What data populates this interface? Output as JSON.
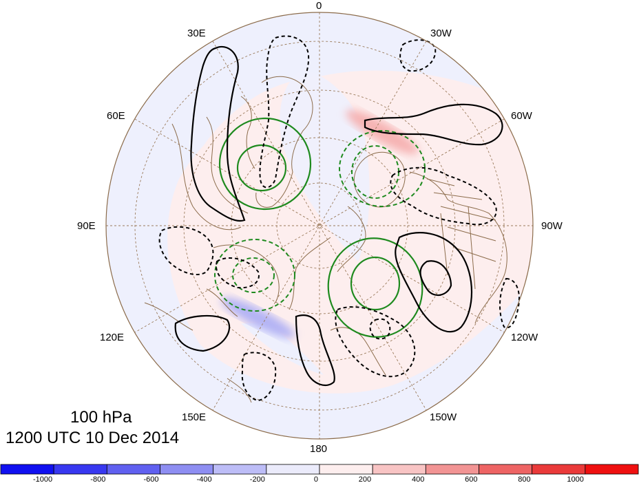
{
  "map": {
    "level": "100 hPa",
    "valid_time": "1200 UTC 10 Dec 2014",
    "projection": "north polar stereographic",
    "longitude_labels": [
      "0",
      "30W",
      "60W",
      "90W",
      "120W",
      "150W",
      "180",
      "150E",
      "120E",
      "90E",
      "60E",
      "30E"
    ]
  },
  "colorbar": {
    "colors": [
      "#1010f0",
      "#3838f0",
      "#6060f0",
      "#8e8ef2",
      "#bdbdf7",
      "#ebebfb",
      "#fdeeee",
      "#f8c4c4",
      "#f29494",
      "#ee6464",
      "#ea3a3a",
      "#ef1010"
    ],
    "tick_labels": [
      "-1000",
      "-800",
      "-600",
      "-400",
      "-200",
      "0",
      "200",
      "400",
      "600",
      "800",
      "1000"
    ]
  },
  "colors": {
    "positive_contour": "#000000",
    "negative_contour": "#000000",
    "green_contour": "#1e8a1e",
    "coastline": "#8b6b4a",
    "gridline": "#9a7a5a"
  }
}
